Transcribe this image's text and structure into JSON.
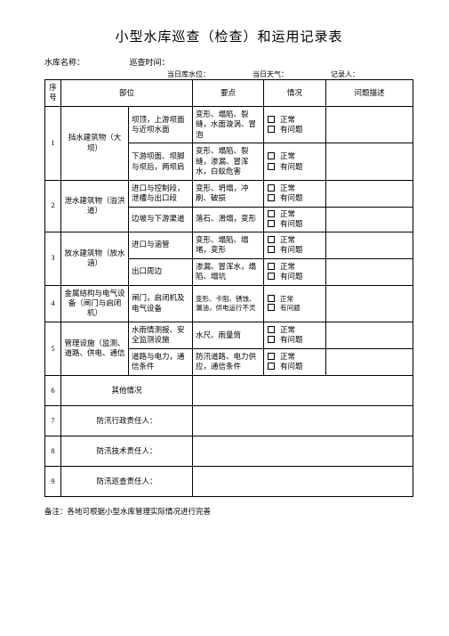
{
  "title": "小型水库巡查（检查）和运用记录表",
  "meta": {
    "reservoir_label": "水库名称：",
    "time_label": "巡查时间：",
    "level_label": "当日库水位：",
    "weather_label": "当日天气：",
    "recorder_label": "记录人："
  },
  "header": {
    "idx": "序号",
    "unit": "部位",
    "focus": "要点",
    "status": "情况",
    "desc": "问题描述"
  },
  "status_normal": "正常",
  "status_issue": "有问题",
  "rows": [
    {
      "idx": "1",
      "category": "挡水建筑物（大坝）",
      "items": [
        {
          "point": "坝顶，上游坝面与近坝水面",
          "focus": "变形、塌陷、裂缝，水面漩涡、冒泡"
        },
        {
          "point": "下游坝面、坝脚与坝后，两坝肩",
          "focus": "变形、塌陷、裂缝，渗漏、冒浑水，白蚁危害"
        }
      ]
    },
    {
      "idx": "2",
      "category": "泄水建筑物（溢洪道）",
      "items": [
        {
          "point": "进口与控制段，泄槽与出口段",
          "focus": "变形、坍塌，冲刷、破损"
        },
        {
          "point": "边坡与下游渠道",
          "focus": "落石、滑塌，变形"
        }
      ]
    },
    {
      "idx": "3",
      "category": "放水建筑物（放水涵）",
      "items": [
        {
          "point": "进口与涵管",
          "focus": "变形、塌陷、塌堵，变形"
        },
        {
          "point": "出口周边",
          "focus": "渗漏、冒浑水，塌陷、塌坑"
        }
      ]
    },
    {
      "idx": "4",
      "category": "金属结构与电气设备（闸门与启闭机）",
      "items": [
        {
          "point": "闸门，启闭机及电气设备",
          "focus": "变形、卡阻、锈蚀、漏油，供电运行不灵"
        }
      ]
    },
    {
      "idx": "5",
      "category": "管理设施（监测、道路、供电、通信",
      "items": [
        {
          "point": "水雨情测报、安全监测设施",
          "focus": "水尺、雨量筒"
        },
        {
          "point": "道路与电力，通信条件",
          "focus": "防汛道路、电力供应，通信条件"
        }
      ]
    }
  ],
  "other_rows": [
    {
      "idx": "6",
      "label": "其他情况"
    },
    {
      "idx": "7",
      "label": "防汛行政责任人："
    },
    {
      "idx": "8",
      "label": "防汛技术责任人："
    },
    {
      "idx": "9",
      "label": "防汛巡查责任人："
    }
  ],
  "footnote": "备注：各地可根据小型水库管理实际情况进行完善"
}
